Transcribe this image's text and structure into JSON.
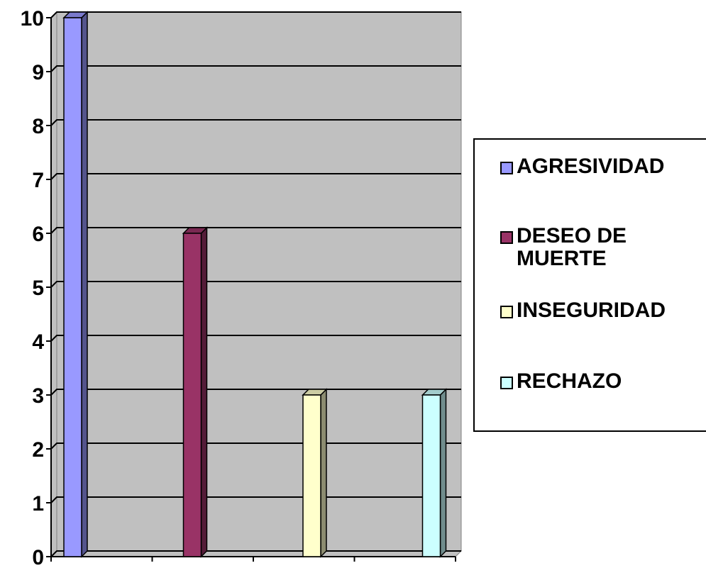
{
  "chart_data": {
    "type": "bar",
    "categories": [
      "AGRESIVIDAD",
      "DESEO DE MUERTE",
      "INSEGURIDAD",
      "RECHAZO"
    ],
    "values": [
      10,
      6,
      3,
      3
    ],
    "colors": [
      "#9999ff",
      "#993366",
      "#ffffcc",
      "#ccffff"
    ],
    "ylim": [
      0,
      10
    ],
    "yticks": [
      0,
      1,
      2,
      3,
      4,
      5,
      6,
      7,
      8,
      9,
      10
    ],
    "grid": true,
    "legend": "right"
  }
}
